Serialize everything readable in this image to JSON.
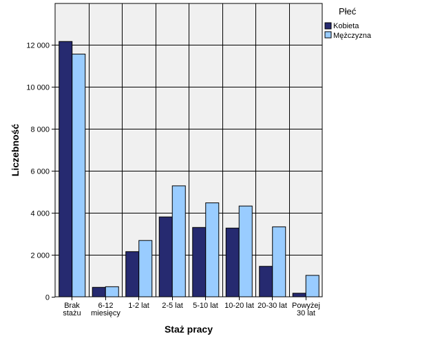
{
  "chart_data": {
    "type": "bar",
    "categories": [
      [
        "Brak",
        "stażu"
      ],
      [
        "6-12",
        "miesięcy"
      ],
      [
        "1-2 lat"
      ],
      [
        "2-5 lat"
      ],
      [
        "5-10 lat"
      ],
      [
        "10-20 lat"
      ],
      [
        "20-30 lat"
      ],
      [
        "Powyżej",
        "30 lat"
      ]
    ],
    "series": [
      {
        "name": "Kobieta",
        "color": "#262a70",
        "values": [
          12150,
          450,
          2150,
          3800,
          3300,
          3270,
          1450,
          170
        ]
      },
      {
        "name": "Mężczyzna",
        "color": "#99ccff",
        "values": [
          11550,
          480,
          2680,
          5280,
          4470,
          4320,
          3330,
          1020
        ]
      }
    ],
    "title": "",
    "xlabel": "Staż pracy",
    "ylabel": "Liczebność",
    "ylim": [
      0,
      13960
    ],
    "yticks": [
      0,
      2000,
      4000,
      6000,
      8000,
      10000,
      12000
    ],
    "ytick_labels": [
      "0",
      "2 000",
      "4 000",
      "6 000",
      "8 000",
      "10 000",
      "12 000"
    ],
    "grid": true,
    "legend": {
      "title": "Płeć",
      "position": "top-right, outside plot"
    },
    "plot_background": "#f0f0f0"
  }
}
